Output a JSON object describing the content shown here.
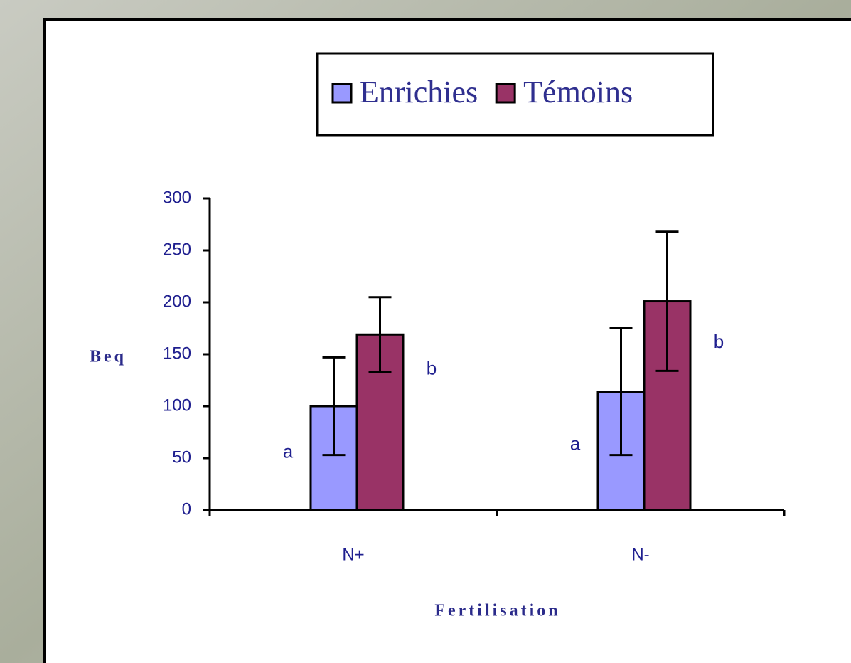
{
  "chart_data": {
    "type": "bar",
    "categories": [
      "N+",
      "N-"
    ],
    "series": [
      {
        "name": "Enrichies",
        "color": "#9999ff",
        "values": [
          100,
          114
        ],
        "errors": [
          47,
          61
        ],
        "labels": [
          "a",
          "a"
        ]
      },
      {
        "name": "Témoins",
        "color": "#993366",
        "values": [
          169,
          201
        ],
        "errors": [
          36,
          67
        ],
        "labels": [
          "b",
          "b"
        ]
      }
    ],
    "ylabel": "Beq",
    "xlabel": "Fertilisation",
    "ylim": [
      0,
      300
    ],
    "yticks": [
      0,
      50,
      100,
      150,
      200,
      250,
      300
    ],
    "grid": false,
    "legend": "top"
  }
}
